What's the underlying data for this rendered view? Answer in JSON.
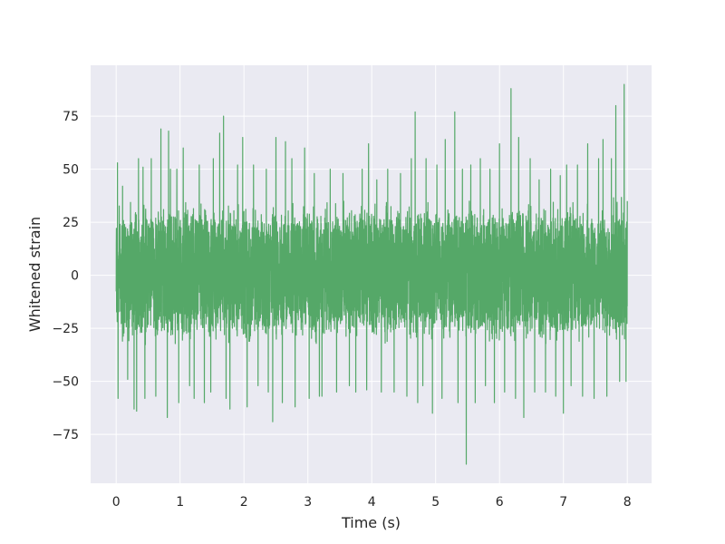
{
  "chart_data": {
    "type": "line",
    "title": "",
    "xlabel": "Time (s)",
    "ylabel": "Whitened strain",
    "xlim": [
      -0.4,
      8.38
    ],
    "ylim": [
      -98,
      99
    ],
    "x_ticks": [
      0,
      1,
      2,
      3,
      4,
      5,
      6,
      7,
      8
    ],
    "y_ticks": [
      -75,
      -50,
      -25,
      0,
      25,
      50,
      75
    ],
    "x_tick_labels": [
      "0",
      "1",
      "2",
      "3",
      "4",
      "5",
      "6",
      "7",
      "8"
    ],
    "y_tick_labels": [
      "−75",
      "−50",
      "−25",
      "0",
      "25",
      "50",
      "75"
    ],
    "grid": true,
    "legend": "none",
    "background_color": "#eaeaf2",
    "grid_color": "#ffffff",
    "series": [
      {
        "color": "#55a868",
        "x_start": 0,
        "x_end": 8,
        "dense_band": [
          -30,
          33
        ],
        "envelope_peaks": [
          {
            "x": 0.02,
            "y": 53
          },
          {
            "x": 0.03,
            "y": -58
          },
          {
            "x": 0.1,
            "y": 42
          },
          {
            "x": 0.18,
            "y": -49
          },
          {
            "x": 0.28,
            "y": 54
          },
          {
            "x": 0.28,
            "y": -63
          },
          {
            "x": 0.32,
            "y": -64
          },
          {
            "x": 0.35,
            "y": 55
          },
          {
            "x": 0.42,
            "y": 51
          },
          {
            "x": 0.45,
            "y": -58
          },
          {
            "x": 0.55,
            "y": 55
          },
          {
            "x": 0.62,
            "y": -57
          },
          {
            "x": 0.7,
            "y": 69
          },
          {
            "x": 0.8,
            "y": -67
          },
          {
            "x": 0.82,
            "y": 68
          },
          {
            "x": 0.85,
            "y": 50
          },
          {
            "x": 0.95,
            "y": 50
          },
          {
            "x": 0.98,
            "y": -60
          },
          {
            "x": 1.05,
            "y": 60
          },
          {
            "x": 1.15,
            "y": -52
          },
          {
            "x": 1.22,
            "y": -58
          },
          {
            "x": 1.3,
            "y": 52
          },
          {
            "x": 1.38,
            "y": -60
          },
          {
            "x": 1.48,
            "y": -55
          },
          {
            "x": 1.52,
            "y": 55
          },
          {
            "x": 1.62,
            "y": 67
          },
          {
            "x": 1.68,
            "y": 75
          },
          {
            "x": 1.72,
            "y": -58
          },
          {
            "x": 1.78,
            "y": -63
          },
          {
            "x": 1.9,
            "y": 52
          },
          {
            "x": 1.98,
            "y": 65
          },
          {
            "x": 2.05,
            "y": -62
          },
          {
            "x": 2.15,
            "y": 52
          },
          {
            "x": 2.22,
            "y": -52
          },
          {
            "x": 2.35,
            "y": 50
          },
          {
            "x": 2.38,
            "y": -55
          },
          {
            "x": 2.45,
            "y": -69
          },
          {
            "x": 2.5,
            "y": 65
          },
          {
            "x": 2.6,
            "y": -60
          },
          {
            "x": 2.65,
            "y": 63
          },
          {
            "x": 2.75,
            "y": 55
          },
          {
            "x": 2.8,
            "y": -62
          },
          {
            "x": 2.95,
            "y": 60
          },
          {
            "x": 3.02,
            "y": -58
          },
          {
            "x": 3.1,
            "y": 48
          },
          {
            "x": 3.18,
            "y": -57
          },
          {
            "x": 3.22,
            "y": -57
          },
          {
            "x": 3.35,
            "y": 50
          },
          {
            "x": 3.45,
            "y": -55
          },
          {
            "x": 3.55,
            "y": 48
          },
          {
            "x": 3.65,
            "y": -52
          },
          {
            "x": 3.75,
            "y": -55
          },
          {
            "x": 3.85,
            "y": 50
          },
          {
            "x": 3.92,
            "y": -54
          },
          {
            "x": 3.95,
            "y": 62
          },
          {
            "x": 4.08,
            "y": 45
          },
          {
            "x": 4.15,
            "y": -55
          },
          {
            "x": 4.25,
            "y": 50
          },
          {
            "x": 4.35,
            "y": -55
          },
          {
            "x": 4.45,
            "y": 48
          },
          {
            "x": 4.55,
            "y": -57
          },
          {
            "x": 4.62,
            "y": 55
          },
          {
            "x": 4.68,
            "y": 77
          },
          {
            "x": 4.72,
            "y": -60
          },
          {
            "x": 4.8,
            "y": -52
          },
          {
            "x": 4.85,
            "y": 55
          },
          {
            "x": 4.95,
            "y": -65
          },
          {
            "x": 5.02,
            "y": 52
          },
          {
            "x": 5.1,
            "y": -58
          },
          {
            "x": 5.15,
            "y": 64
          },
          {
            "x": 5.3,
            "y": 77
          },
          {
            "x": 5.35,
            "y": -60
          },
          {
            "x": 5.42,
            "y": 50
          },
          {
            "x": 5.48,
            "y": -89
          },
          {
            "x": 5.55,
            "y": 52
          },
          {
            "x": 5.62,
            "y": -60
          },
          {
            "x": 5.7,
            "y": 55
          },
          {
            "x": 5.78,
            "y": -52
          },
          {
            "x": 5.85,
            "y": 50
          },
          {
            "x": 5.92,
            "y": -60
          },
          {
            "x": 6.0,
            "y": 62
          },
          {
            "x": 6.08,
            "y": -55
          },
          {
            "x": 6.18,
            "y": 88
          },
          {
            "x": 6.25,
            "y": -58
          },
          {
            "x": 6.3,
            "y": 65
          },
          {
            "x": 6.38,
            "y": -67
          },
          {
            "x": 6.48,
            "y": 55
          },
          {
            "x": 6.55,
            "y": -55
          },
          {
            "x": 6.62,
            "y": 45
          },
          {
            "x": 6.72,
            "y": -55
          },
          {
            "x": 6.8,
            "y": 50
          },
          {
            "x": 6.88,
            "y": -57
          },
          {
            "x": 6.95,
            "y": 47
          },
          {
            "x": 7.0,
            "y": -65
          },
          {
            "x": 7.05,
            "y": 52
          },
          {
            "x": 7.12,
            "y": -52
          },
          {
            "x": 7.22,
            "y": 52
          },
          {
            "x": 7.3,
            "y": -57
          },
          {
            "x": 7.38,
            "y": 62
          },
          {
            "x": 7.48,
            "y": -58
          },
          {
            "x": 7.55,
            "y": 55
          },
          {
            "x": 7.62,
            "y": 64
          },
          {
            "x": 7.68,
            "y": -57
          },
          {
            "x": 7.75,
            "y": 55
          },
          {
            "x": 7.82,
            "y": 80
          },
          {
            "x": 7.88,
            "y": -50
          },
          {
            "x": 7.95,
            "y": 90
          },
          {
            "x": 7.98,
            "y": -50
          },
          {
            "x": 8.0,
            "y": 35
          }
        ]
      }
    ]
  }
}
